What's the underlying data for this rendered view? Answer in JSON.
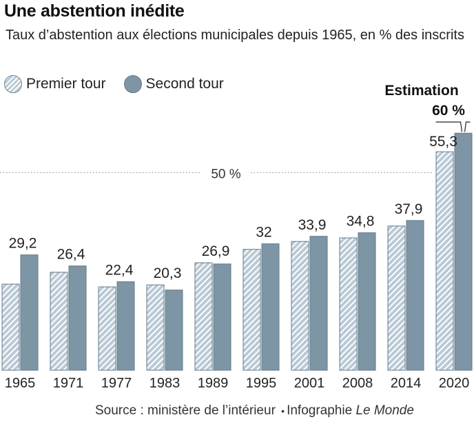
{
  "title": "Une abstention inédite",
  "subtitle": "Taux d’abstention aux élections municipales depuis 1965, en % des inscrits",
  "legend": {
    "first": "Premier tour",
    "second": "Second tour"
  },
  "reference_line": {
    "value": 50,
    "label": "50 %"
  },
  "estimation": {
    "label": "Estimation",
    "value_label": "60 %",
    "value": 60
  },
  "colors": {
    "first_fill": "#b9c9d6",
    "first_stripe": "#ffffff",
    "second_fill": "#7e95a5",
    "stroke": "#61798a"
  },
  "source": {
    "prefix": "Source : ministère de l’intérieur",
    "separator": "•",
    "infographie": "Infographie",
    "brand": "Le Monde"
  },
  "chart_data": {
    "type": "bar",
    "categories": [
      "1965",
      "1971",
      "1977",
      "1983",
      "1989",
      "1995",
      "2001",
      "2008",
      "2014",
      "2020"
    ],
    "series": [
      {
        "name": "Premier tour",
        "values": [
          21.8,
          24.8,
          21.1,
          21.6,
          27.2,
          30.6,
          32.6,
          33.5,
          36.5,
          55.3
        ]
      },
      {
        "name": "Second tour",
        "values": [
          29.2,
          26.4,
          22.4,
          20.3,
          26.9,
          32,
          33.9,
          34.8,
          37.9,
          60
        ]
      }
    ],
    "data_labels": [
      "29,2",
      "26,4",
      "22,4",
      "20,3",
      "26,9",
      "32",
      "33,9",
      "34,8",
      "37,9",
      "55,3"
    ],
    "ylim": [
      0,
      60
    ],
    "grid": false
  }
}
